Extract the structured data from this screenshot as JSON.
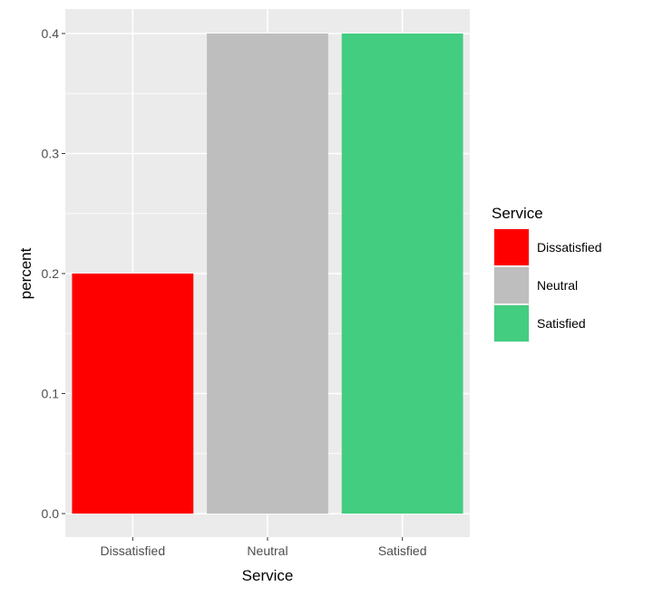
{
  "chart_data": {
    "type": "bar",
    "categories": [
      "Dissatisfied",
      "Neutral",
      "Satisfied"
    ],
    "values": [
      0.2,
      0.4,
      0.4
    ],
    "colors": [
      "#ff0000",
      "#bebebe",
      "#43cd80"
    ],
    "title": "",
    "xlabel": "Service",
    "ylabel": "percent",
    "ylim": [
      0,
      0.4
    ],
    "yticks": [
      0.0,
      0.1,
      0.2,
      0.3,
      0.4
    ],
    "ytick_labels": [
      "0.0",
      "0.1",
      "0.2",
      "0.3",
      "0.4"
    ],
    "grid": true,
    "panel_background": "#ebebeb",
    "legend": {
      "title": "Service",
      "position": "right",
      "entries": [
        "Dissatisfied",
        "Neutral",
        "Satisfied"
      ]
    }
  }
}
